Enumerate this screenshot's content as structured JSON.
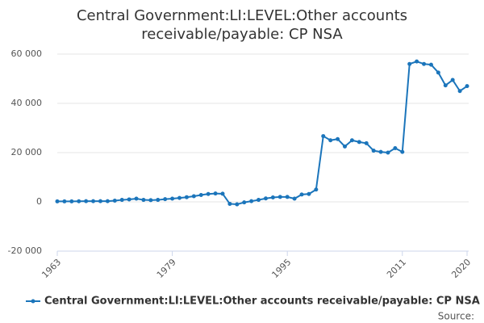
{
  "chart_data": {
    "type": "line",
    "title": "Central Government:LI:LEVEL:Other accounts receivable/payable: CP NSA",
    "x": [
      1963,
      1964,
      1965,
      1966,
      1967,
      1968,
      1969,
      1970,
      1971,
      1972,
      1973,
      1974,
      1975,
      1976,
      1977,
      1978,
      1979,
      1980,
      1981,
      1982,
      1983,
      1984,
      1985,
      1986,
      1987,
      1988,
      1989,
      1990,
      1991,
      1992,
      1993,
      1994,
      1995,
      1996,
      1997,
      1998,
      1999,
      2000,
      2001,
      2002,
      2003,
      2004,
      2005,
      2006,
      2007,
      2008,
      2009,
      2010,
      2011,
      2012,
      2013,
      2014,
      2015,
      2016,
      2017,
      2018,
      2019,
      2020
    ],
    "series": [
      {
        "name": "Central Government:LI:LEVEL:Other accounts receivable/payable: CP NSA",
        "color": "#1b75bb",
        "values": [
          200,
          200,
          200,
          250,
          300,
          300,
          300,
          300,
          500,
          800,
          1000,
          1300,
          800,
          700,
          800,
          1100,
          1300,
          1600,
          1900,
          2300,
          2800,
          3200,
          3400,
          3300,
          -800,
          -1000,
          -200,
          300,
          800,
          1400,
          1800,
          2000,
          2000,
          1300,
          3000,
          3200,
          5000,
          26700,
          25000,
          25500,
          22500,
          25000,
          24300,
          23800,
          20800,
          20300,
          20000,
          21800,
          20300,
          56000,
          57000,
          56000,
          55700,
          52500,
          47300,
          49500,
          45000,
          47000
        ]
      }
    ],
    "xlim": [
      1963,
      2020
    ],
    "xticks": [
      1963,
      1979,
      1995,
      2011,
      2020
    ],
    "ylim": [
      -20000,
      60000
    ],
    "yticks": [
      {
        "value": -20000,
        "label": "-20 000"
      },
      0,
      {
        "value": 20000,
        "label": "20 000"
      },
      {
        "value": 40000,
        "label": "40 000"
      },
      {
        "value": 60000,
        "label": "60 000"
      }
    ],
    "grid": true,
    "legend": "bottom",
    "source": "Source:"
  }
}
